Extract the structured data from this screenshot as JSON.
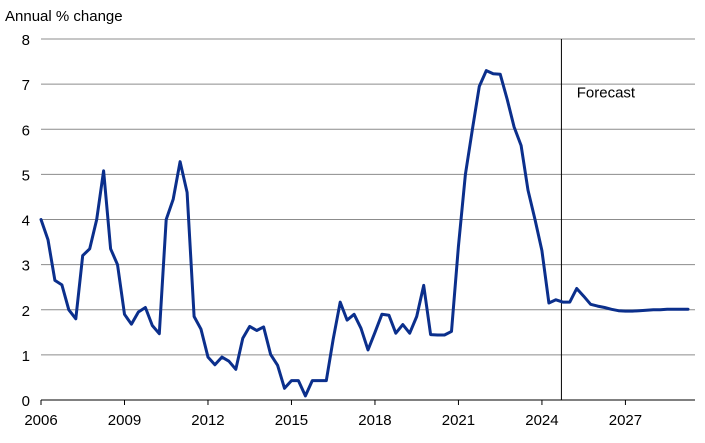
{
  "chart_data": {
    "type": "line",
    "title": "",
    "ylabel": "Annual % change",
    "xlabel": "",
    "ylim": [
      0,
      8
    ],
    "yticks": [
      0,
      1,
      2,
      3,
      4,
      5,
      6,
      7,
      8
    ],
    "xlim": [
      2006,
      2029.5
    ],
    "xticks": [
      2006,
      2009,
      2012,
      2015,
      2018,
      2021,
      2024,
      2027
    ],
    "grid": true,
    "legend": "none",
    "colors": {
      "series": "#0b2f8c",
      "grid": "#8c8c8c"
    },
    "annotations": [
      {
        "text": "Forecast",
        "x": 2026.3,
        "y": 6.7
      }
    ],
    "forecast_start": 2024.7,
    "series": [
      {
        "name": "",
        "x": [
          2006.0,
          2006.25,
          2006.5,
          2006.75,
          2007.0,
          2007.25,
          2007.5,
          2007.75,
          2008.0,
          2008.25,
          2008.5,
          2008.75,
          2009.0,
          2009.25,
          2009.5,
          2009.75,
          2010.0,
          2010.25,
          2010.5,
          2010.75,
          2011.0,
          2011.25,
          2011.5,
          2011.75,
          2012.0,
          2012.25,
          2012.5,
          2012.75,
          2013.0,
          2013.25,
          2013.5,
          2013.75,
          2014.0,
          2014.25,
          2014.5,
          2014.75,
          2015.0,
          2015.25,
          2015.5,
          2015.75,
          2016.0,
          2016.25,
          2016.5,
          2016.75,
          2017.0,
          2017.25,
          2017.5,
          2017.75,
          2018.0,
          2018.25,
          2018.5,
          2018.75,
          2019.0,
          2019.25,
          2019.5,
          2019.75,
          2020.0,
          2020.25,
          2020.5,
          2020.75,
          2021.0,
          2021.25,
          2021.5,
          2021.75,
          2022.0,
          2022.25,
          2022.5,
          2022.75,
          2023.0,
          2023.25,
          2023.5,
          2023.75,
          2024.0,
          2024.25,
          2024.5,
          2024.75,
          2025.0,
          2025.25,
          2025.5,
          2025.75,
          2026.0,
          2026.25,
          2026.5,
          2026.75,
          2027.0,
          2027.25,
          2027.5,
          2027.75,
          2028.0,
          2028.25,
          2028.5,
          2028.75,
          2029.0,
          2029.25
        ],
        "values": [
          4.0,
          3.55,
          2.65,
          2.55,
          2.0,
          1.8,
          3.2,
          3.35,
          4.0,
          5.08,
          3.35,
          3.0,
          1.9,
          1.68,
          1.95,
          2.05,
          1.65,
          1.47,
          4.0,
          4.45,
          5.28,
          4.6,
          1.85,
          1.57,
          0.95,
          0.78,
          0.95,
          0.86,
          0.68,
          1.37,
          1.63,
          1.54,
          1.62,
          1.01,
          0.77,
          0.26,
          0.43,
          0.43,
          0.09,
          0.43,
          0.43,
          0.43,
          1.35,
          2.17,
          1.77,
          1.9,
          1.59,
          1.11,
          1.5,
          1.9,
          1.88,
          1.48,
          1.67,
          1.48,
          1.85,
          2.54,
          1.45,
          1.44,
          1.44,
          1.52,
          3.4,
          5.0,
          6.0,
          6.95,
          7.3,
          7.23,
          7.22,
          6.67,
          6.05,
          5.64,
          4.65,
          4.0,
          3.31,
          2.15,
          2.22,
          2.17,
          2.17,
          2.47,
          2.3,
          2.12,
          2.08,
          2.05,
          2.01,
          1.98,
          1.97,
          1.97,
          1.98,
          1.99,
          2.0,
          2.0,
          2.01,
          2.01,
          2.01,
          2.01
        ]
      }
    ]
  }
}
